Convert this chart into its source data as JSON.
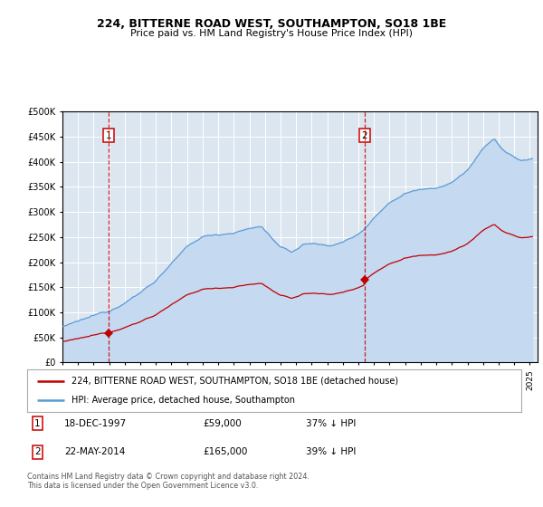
{
  "title1": "224, BITTERNE ROAD WEST, SOUTHAMPTON, SO18 1BE",
  "title2": "Price paid vs. HM Land Registry's House Price Index (HPI)",
  "legend1": "224, BITTERNE ROAD WEST, SOUTHAMPTON, SO18 1BE (detached house)",
  "legend2": "HPI: Average price, detached house, Southampton",
  "purchase1_date": "18-DEC-1997",
  "purchase1_price": 59000,
  "purchase1_label": "1",
  "purchase1_year": 1997.96,
  "purchase2_date": "22-MAY-2014",
  "purchase2_price": 165000,
  "purchase2_label": "2",
  "purchase2_year": 2014.38,
  "footer": "Contains HM Land Registry data © Crown copyright and database right 2024.\nThis data is licensed under the Open Government Licence v3.0.",
  "hpi_color": "#5b9bd5",
  "hpi_fill_color": "#c5d9f1",
  "red_color": "#c00000",
  "bg_color": "#dce6f1",
  "grid_color": "#ffffff",
  "ylim_max": 500000,
  "yticks": [
    0,
    50000,
    100000,
    150000,
    200000,
    250000,
    300000,
    350000,
    400000,
    450000,
    500000
  ]
}
